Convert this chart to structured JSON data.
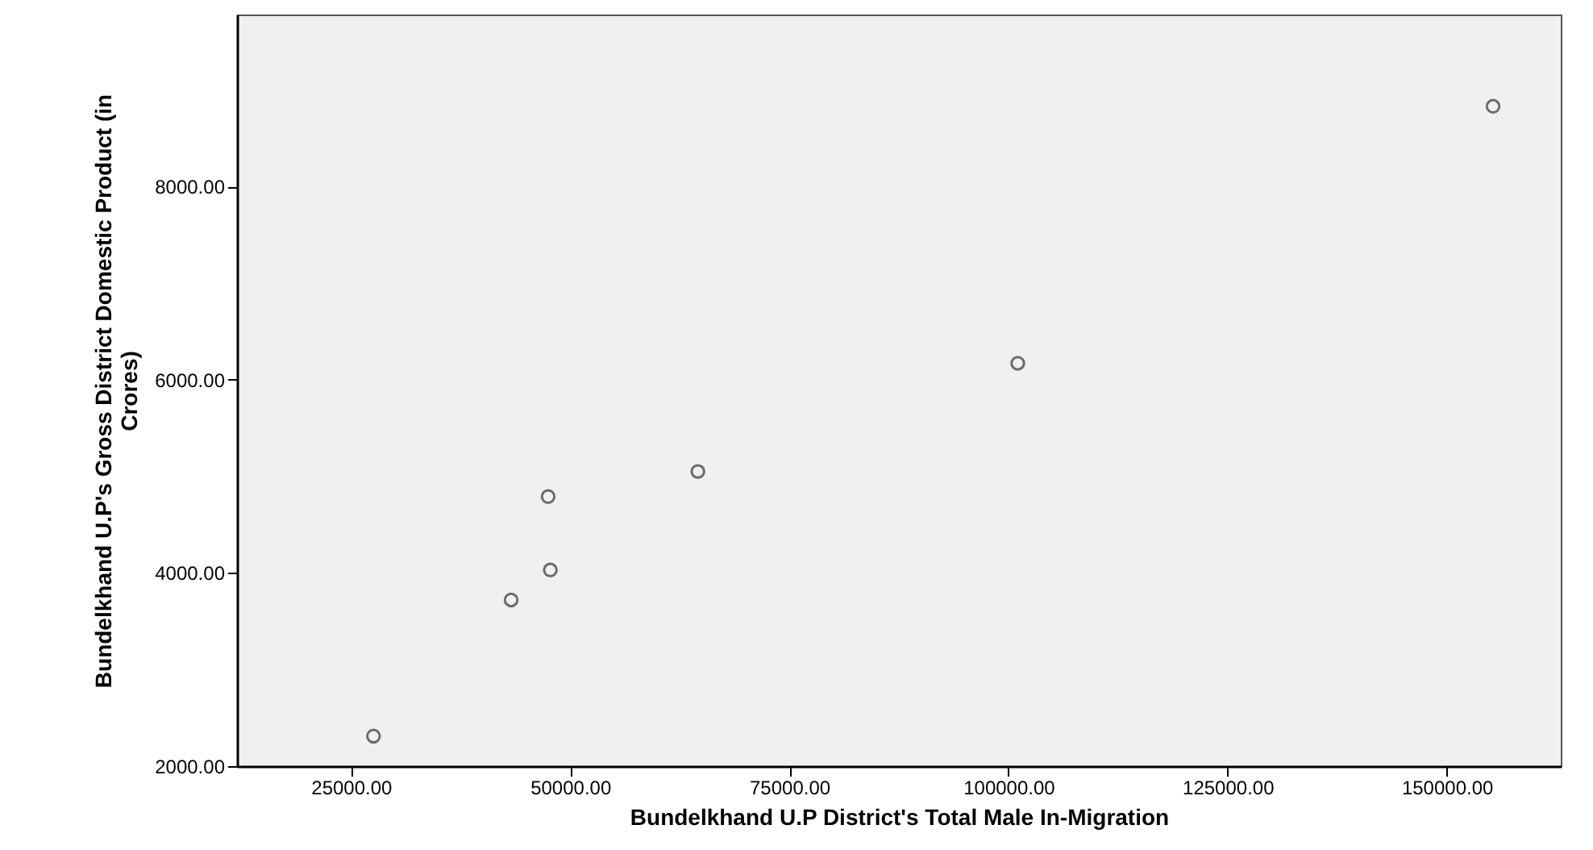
{
  "chart_data": {
    "type": "scatter",
    "xlabel": "Bundelkhand U.P District's Total Male In-Migration",
    "ylabel": "Bundelkhand U.P's Gross District Domestic Product (in Crores)",
    "x": [
      27570,
      43270,
      47740,
      47490,
      64570,
      101060,
      155280
    ],
    "series": [
      {
        "color": "#333333",
        "values": [
          2310,
          3720,
          4030,
          4790,
          5050,
          6170,
          8830
        ]
      }
    ],
    "xlim": [
      12000,
      163000
    ],
    "ylim": [
      2000,
      9780
    ],
    "xticks": [
      {
        "value": 25000,
        "label": "25000.00"
      },
      {
        "value": 50000,
        "label": "50000.00"
      },
      {
        "value": 75000,
        "label": "75000.00"
      },
      {
        "value": 100000,
        "label": "100000.00"
      },
      {
        "value": 125000,
        "label": "125000.00"
      },
      {
        "value": 150000,
        "label": "150000.00"
      }
    ],
    "yticks": [
      {
        "value": 2000,
        "label": "2000.00"
      },
      {
        "value": 4000,
        "label": "4000.00"
      },
      {
        "value": 6000,
        "label": "6000.00"
      },
      {
        "value": 8000,
        "label": "8000.00"
      }
    ],
    "grid": false,
    "marker": "circle"
  }
}
